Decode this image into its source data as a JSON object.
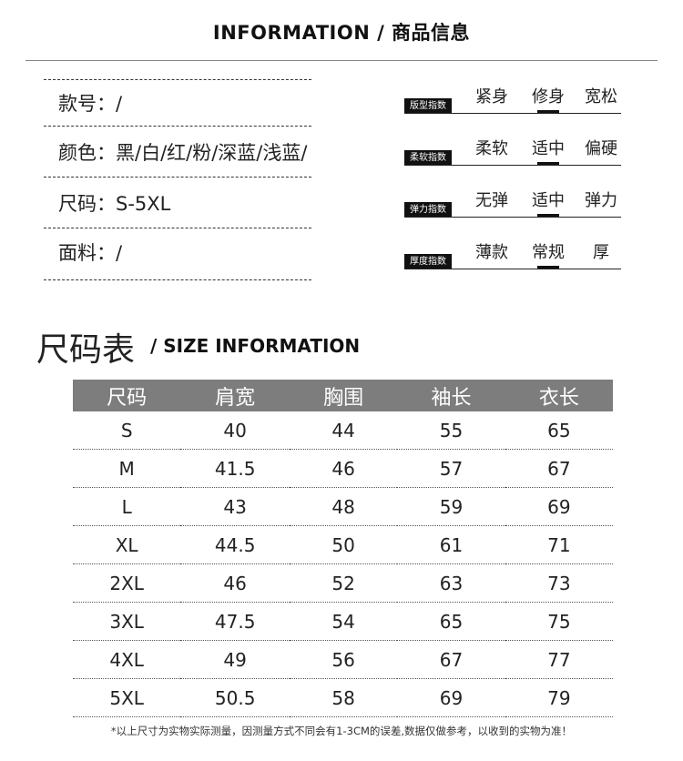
{
  "title": "INFORMATION / 商品信息",
  "info": [
    {
      "label": "款号：/"
    },
    {
      "label": "颜色：黑/白/红/粉/深蓝/浅蓝/"
    },
    {
      "label": "尺码：S-5XL"
    },
    {
      "label": "面料：/"
    }
  ],
  "indices": [
    {
      "tag": "版型指数",
      "options": [
        "紧身",
        "修身",
        "宽松"
      ],
      "selected": 1
    },
    {
      "tag": "柔软指数",
      "options": [
        "柔软",
        "适中",
        "偏硬"
      ],
      "selected": 1
    },
    {
      "tag": "弹力指数",
      "options": [
        "无弹",
        "适中",
        "弹力"
      ],
      "selected": 1
    },
    {
      "tag": "厚度指数",
      "options": [
        "薄款",
        "常规",
        "厚"
      ],
      "selected": 1
    }
  ],
  "size_title": "尺码表",
  "size_subtitle": "/ SIZE INFORMATION",
  "table": {
    "headers": [
      "尺码",
      "肩宽",
      "胸围",
      "袖长",
      "衣长"
    ],
    "rows": [
      [
        "S",
        "40",
        "44",
        "55",
        "65"
      ],
      [
        "M",
        "41.5",
        "46",
        "57",
        "67"
      ],
      [
        "L",
        "43",
        "48",
        "59",
        "69"
      ],
      [
        "XL",
        "44.5",
        "50",
        "61",
        "71"
      ],
      [
        "2XL",
        "46",
        "52",
        "63",
        "73"
      ],
      [
        "3XL",
        "47.5",
        "54",
        "65",
        "75"
      ],
      [
        "4XL",
        "49",
        "56",
        "67",
        "77"
      ],
      [
        "5XL",
        "50.5",
        "58",
        "69",
        "79"
      ]
    ]
  },
  "note": "*以上尺寸为实物实际测量，因测量方式不同会有1-3CM的误差,数据仅做参考，以收到的实物为准！"
}
